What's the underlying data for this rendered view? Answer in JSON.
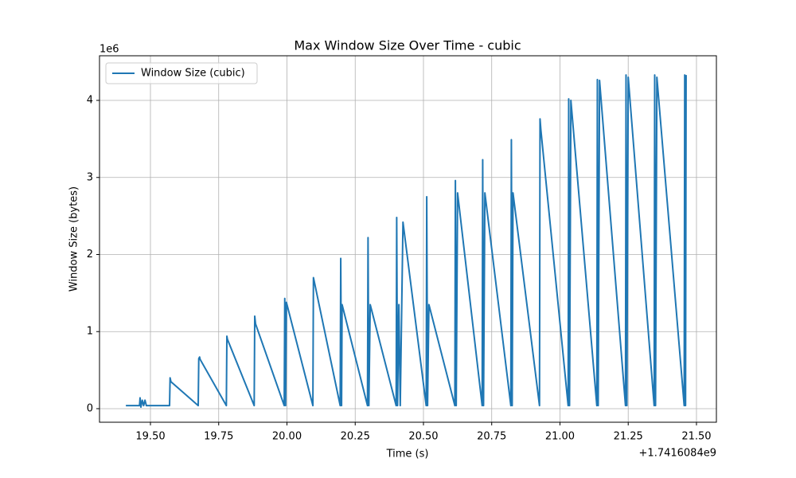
{
  "chart_data": {
    "type": "line",
    "title": "Max Window Size Over Time - cubic",
    "x_label": "Time (s)",
    "y_label": "Window Size (bytes)",
    "x_offset_label": "+1.7416084e9",
    "y_offset_label": "1e6",
    "legend": "upper left",
    "grid": true,
    "xlim": [
      1741608419.3134,
      1741608421.573
    ],
    "ylim": [
      -176000,
      4579000
    ],
    "xticks": [
      {
        "value": 1741608419.5,
        "label": "19.50"
      },
      {
        "value": 1741608419.75,
        "label": "19.75"
      },
      {
        "value": 1741608420.0,
        "label": "20.00"
      },
      {
        "value": 1741608420.25,
        "label": "20.25"
      },
      {
        "value": 1741608420.5,
        "label": "20.50"
      },
      {
        "value": 1741608420.75,
        "label": "20.75"
      },
      {
        "value": 1741608421.0,
        "label": "21.00"
      },
      {
        "value": 1741608421.25,
        "label": "21.25"
      },
      {
        "value": 1741608421.5,
        "label": "21.50"
      }
    ],
    "yticks": [
      0,
      {
        "value": 1000000,
        "label": "1"
      },
      {
        "value": 2000000,
        "label": "2"
      },
      {
        "value": 3000000,
        "label": "3"
      },
      {
        "value": 4000000,
        "label": "4"
      }
    ],
    "x": [
      1741608419.41,
      1741608419.46,
      1741608419.462,
      1741608419.465,
      1741608419.47,
      1741608419.475,
      1741608419.48,
      1741608419.485,
      1741608419.57,
      1741608419.572,
      1741608419.575,
      1741608419.675,
      1741608419.677,
      1741608419.68,
      1741608419.682,
      1741608419.778,
      1741608419.78,
      1741608419.782,
      1741608419.88,
      1741608419.882,
      1741608419.885,
      1741608419.99,
      1741608419.992,
      1741608419.995,
      1741608419.998,
      1741608420.095,
      1741608420.097,
      1741608420.1,
      1741608420.195,
      1741608420.197,
      1741608420.2,
      1741608420.202,
      1741608420.295,
      1741608420.297,
      1741608420.3,
      1741608420.305,
      1741608420.4,
      1741608420.402,
      1741608420.405,
      1741608420.41,
      1741608420.415,
      1741608420.425,
      1741608420.51,
      1741608420.512,
      1741608420.515,
      1741608420.52,
      1741608420.615,
      1741608420.617,
      1741608420.62,
      1741608420.625,
      1741608420.715,
      1741608420.717,
      1741608420.72,
      1741608420.725,
      1741608420.82,
      1741608420.822,
      1741608420.825,
      1741608420.828,
      1741608420.925,
      1741608420.927,
      1741608420.93,
      1741608421.03,
      1741608421.032,
      1741608421.035,
      1741608421.04,
      1741608421.135,
      1741608421.137,
      1741608421.14,
      1741608421.145,
      1741608421.24,
      1741608421.242,
      1741608421.245,
      1741608421.25,
      1741608421.345,
      1741608421.347,
      1741608421.35,
      1741608421.355,
      1741608421.455,
      1741608421.457,
      1741608421.46,
      1741608421.462
    ],
    "series": [
      {
        "name": "Window Size (cubic)",
        "color": "#1f77b4",
        "values": [
          40000,
          40000,
          140000,
          20000,
          110000,
          40000,
          110000,
          40000,
          40000,
          400000,
          350000,
          40000,
          650000,
          670000,
          640000,
          40000,
          940000,
          900000,
          40000,
          1200000,
          1100000,
          40000,
          1430000,
          40000,
          1380000,
          40000,
          1700000,
          1650000,
          40000,
          1950000,
          40000,
          1350000,
          40000,
          2220000,
          40000,
          1350000,
          40000,
          2480000,
          40000,
          1350000,
          40000,
          2420000,
          40000,
          2750000,
          40000,
          1350000,
          40000,
          2960000,
          40000,
          2800000,
          40000,
          3230000,
          40000,
          2800000,
          40000,
          3490000,
          40000,
          2800000,
          40000,
          3760000,
          3620000,
          40000,
          4020000,
          40000,
          4000000,
          40000,
          4270000,
          40000,
          4260000,
          40000,
          4330000,
          40000,
          4300000,
          40000,
          4330000,
          40000,
          4300000,
          40000,
          4330000,
          40000,
          4330000
        ]
      }
    ]
  }
}
